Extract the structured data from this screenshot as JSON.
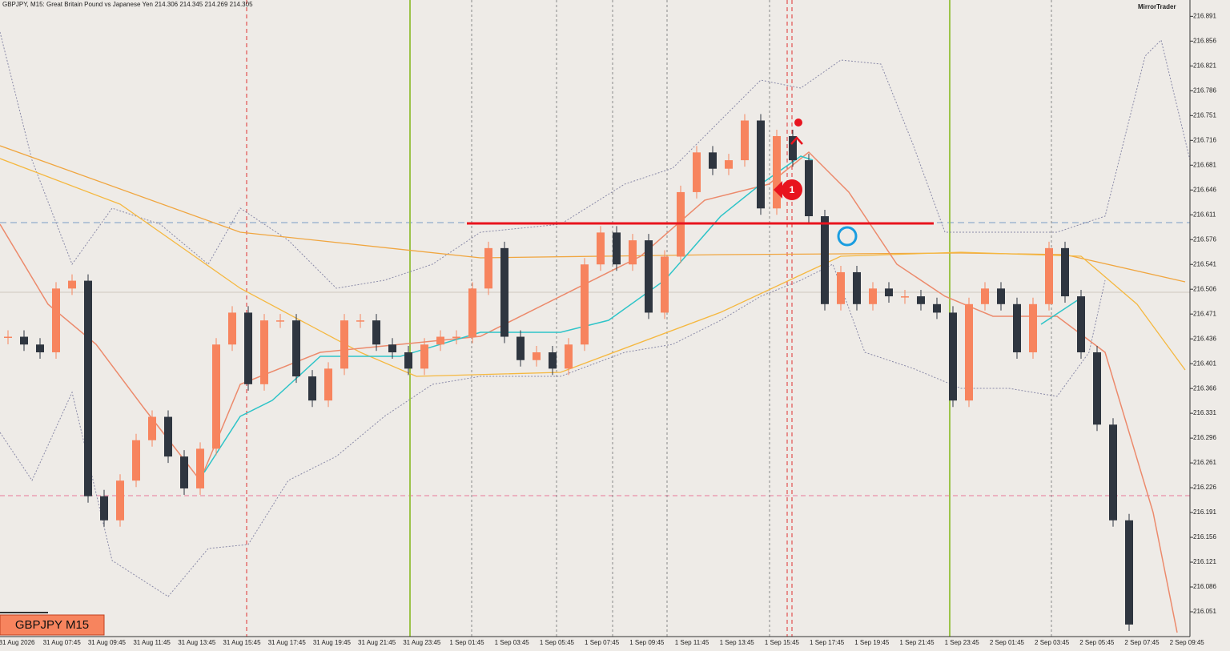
{
  "header": {
    "text": "GBPJPY, M15:  Great Britain Pound vs Japanese Yen  214.306 214.345 214.269 214.305",
    "brand": "MirrorTrader"
  },
  "badge": "GBPJPY M15",
  "marker": "1",
  "chart_data": {
    "type": "candlestick",
    "categories": [
      "31 Aug 2026",
      "31 Aug 07:45",
      "31 Aug 09:45",
      "31 Aug 11:45",
      "31 Aug 13:45",
      "31 Aug 15:45",
      "31 Aug 17:45",
      "31 Aug 19:45",
      "31 Aug 21:45",
      "31 Aug 23:45",
      "1 Sep 01:45",
      "1 Sep 03:45",
      "1 Sep 05:45",
      "1 Sep 07:45",
      "1 Sep 09:45",
      "1 Sep 11:45",
      "1 Sep 13:45",
      "1 Sep 15:45",
      "1 Sep 17:45",
      "1 Sep 19:45",
      "1 Sep 21:45",
      "1 Sep 23:45",
      "2 Sep 01:45",
      "2 Sep 03:45",
      "2 Sep 05:45",
      "2 Sep 07:45",
      "2 Sep 09:45"
    ],
    "closes": [
      216.439,
      216.428,
      216.417,
      216.507,
      216.518,
      216.214,
      216.18,
      216.236,
      216.293,
      216.326,
      216.27,
      216.225,
      216.281,
      216.428,
      216.473,
      216.372,
      216.462,
      216.462,
      216.383,
      216.349,
      216.394,
      216.462,
      216.462,
      216.428,
      216.417,
      216.394,
      216.428,
      216.439,
      216.439,
      216.507,
      216.564,
      216.439,
      216.406,
      216.417,
      216.394,
      216.428,
      216.541,
      216.586,
      216.541,
      216.575,
      216.473,
      216.552,
      216.643,
      216.699,
      216.676,
      216.688,
      216.744,
      216.62,
      216.722,
      216.688,
      216.609,
      216.485,
      216.53,
      216.485,
      216.507,
      216.496,
      216.496,
      216.485,
      216.473,
      216.349,
      216.485,
      216.507,
      216.485,
      216.417,
      216.485,
      216.564,
      216.496,
      216.417,
      216.315,
      216.18,
      216.033
    ],
    "up_color": "#f7845e",
    "down_color": "#2f3640",
    "ylim": [
      216.016,
      216.914
    ],
    "yticks": [
      216.051,
      216.086,
      216.121,
      216.156,
      216.191,
      216.226,
      216.261,
      216.296,
      216.331,
      216.366,
      216.401,
      216.436,
      216.471,
      216.506,
      216.541,
      216.576,
      216.611,
      216.646,
      216.681,
      216.716,
      216.751,
      216.786,
      216.821,
      216.856,
      216.891
    ]
  }
}
